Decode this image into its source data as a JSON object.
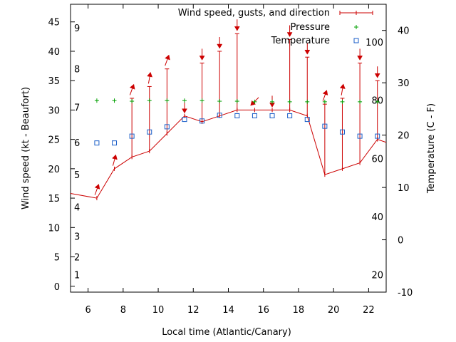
{
  "chart_data": {
    "type": "line",
    "xlabel": "Local time (Atlantic/Canary)",
    "ylabel": "Wind speed (kt - Beaufort)",
    "y2label": "Temperature (C - F)",
    "xlim": [
      5,
      23
    ],
    "ylim": [
      -1,
      48
    ],
    "y2lim": [
      -10,
      45
    ],
    "x_ticks": [
      6,
      8,
      10,
      12,
      14,
      16,
      18,
      20,
      22
    ],
    "y_ticks": [
      0,
      5,
      10,
      15,
      20,
      25,
      30,
      35,
      40,
      45
    ],
    "y2_ticks": [
      -10,
      0,
      10,
      20,
      30,
      40
    ],
    "fahrenheit_marks": [
      20,
      40,
      60,
      80,
      100
    ],
    "beaufort_marks": [
      1,
      2,
      3,
      4,
      5,
      6,
      7,
      8,
      9
    ],
    "legend": {
      "placement": "top-right",
      "entries": [
        "Wind speed, gusts, and direction",
        "Pressure",
        "Temperature"
      ]
    },
    "colors": {
      "wind": "#cc0000",
      "pressure": "#00a000",
      "temperature": "#1a5ec8"
    },
    "series": [
      {
        "name": "Wind speed, gusts, and direction",
        "x": [
          5,
          6.5,
          7.5,
          8.5,
          9.5,
          10.5,
          11.5,
          12.5,
          13.5,
          14.5,
          15.5,
          16.5,
          17.5,
          18.5,
          19.5,
          20.5,
          21.5,
          22.5,
          23
        ],
        "speed": [
          15.8,
          15,
          20,
          22,
          23,
          26,
          29,
          28,
          29,
          30,
          30,
          30,
          30,
          29,
          19,
          20,
          21,
          25,
          24.5
        ],
        "gust": [
          null,
          null,
          null,
          32,
          34,
          37,
          null,
          38,
          40,
          43,
          null,
          null,
          42,
          39,
          31,
          32,
          38,
          35,
          null
        ],
        "direction_deg": [
          null,
          200,
          195,
          200,
          190,
          200,
          0,
          0,
          0,
          0,
          45,
          0,
          0,
          0,
          200,
          190,
          0,
          0,
          null
        ]
      },
      {
        "name": "Pressure",
        "x": [
          6.5,
          7.5,
          8.5,
          9.5,
          10.5,
          11.5,
          12.5,
          13.5,
          14.5,
          15.5,
          16.5,
          17.5,
          18.5,
          19.5,
          20.5,
          21.5,
          22.5
        ],
        "y": [
          31.6,
          31.6,
          31.5,
          31.6,
          31.6,
          31.6,
          31.6,
          31.5,
          31.5,
          31.4,
          31.4,
          31.4,
          31.4,
          31.4,
          31.4,
          31.4,
          31.4
        ]
      },
      {
        "name": "Temperature",
        "x": [
          6.5,
          7.5,
          8.5,
          9.5,
          10.5,
          11.5,
          12.5,
          13.5,
          14.5,
          15.5,
          16.5,
          17.5,
          18.5,
          19.5,
          20.5,
          21.5,
          22.5
        ],
        "y": [
          18.5,
          18.5,
          19.8,
          20.6,
          21.6,
          23,
          22.7,
          23.8,
          23.7,
          23.7,
          23.7,
          23.7,
          23,
          21.7,
          20.6,
          19.8,
          19.8
        ]
      }
    ]
  }
}
